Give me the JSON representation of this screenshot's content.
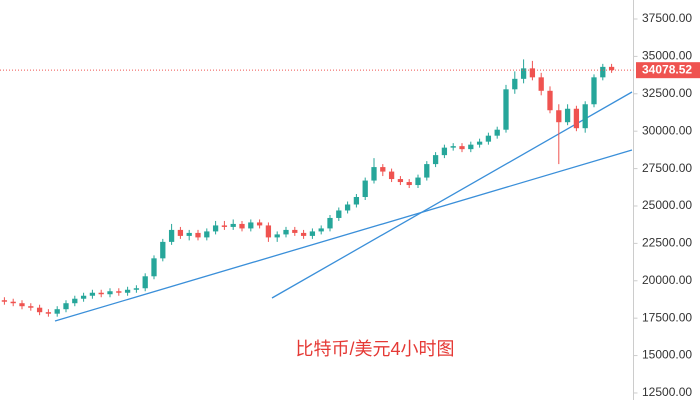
{
  "chart_data": {
    "type": "candlestick",
    "title": "比特币/美元4小时图",
    "colors": {
      "up": "#26a69a",
      "down": "#ef5350"
    },
    "open": [
      18700,
      18600,
      18500,
      18300,
      18200,
      17900,
      17800,
      18100,
      18500,
      18800,
      19000,
      19200,
      19100,
      19300,
      19200,
      19400,
      19500,
      20300,
      21500,
      22600,
      23400,
      23000,
      23200,
      22900,
      23300,
      23700,
      23600,
      23800,
      23500,
      23900,
      23700,
      22900,
      23100,
      23400,
      23200,
      23000,
      23300,
      23500,
      24200,
      24700,
      25100,
      25600,
      26700,
      27600,
      27300,
      26800,
      26600,
      26400,
      26900,
      27800,
      28400,
      28900,
      29000,
      28800,
      29100,
      29300,
      29700,
      30100,
      32800,
      33500,
      34200,
      33600,
      32700,
      31400,
      30600,
      31500,
      30200,
      31800,
      33600,
      34300
    ],
    "high": [
      18900,
      18800,
      18700,
      18500,
      18400,
      18100,
      18300,
      18700,
      19000,
      19200,
      19400,
      19400,
      19500,
      19500,
      19600,
      19700,
      20500,
      21700,
      22800,
      23800,
      23600,
      23400,
      23400,
      23500,
      24000,
      24000,
      24100,
      24000,
      24100,
      24100,
      23900,
      23300,
      23600,
      23600,
      23400,
      23500,
      23700,
      24400,
      24900,
      25300,
      25800,
      26900,
      28200,
      27800,
      27500,
      27000,
      26800,
      27100,
      28000,
      28600,
      29100,
      29200,
      29200,
      29300,
      29500,
      29900,
      30300,
      33100,
      34000,
      34800,
      34700,
      33900,
      33000,
      31800,
      31800,
      31700,
      32000,
      33800,
      34500,
      34500
    ],
    "low": [
      18400,
      18300,
      18100,
      18000,
      17700,
      17600,
      17600,
      17900,
      18300,
      18600,
      18800,
      18900,
      18900,
      19000,
      19000,
      19200,
      19300,
      20100,
      21300,
      22400,
      22800,
      22700,
      22700,
      22700,
      23100,
      23400,
      23400,
      23300,
      23300,
      23500,
      22600,
      22600,
      22900,
      23000,
      22800,
      22800,
      23100,
      23300,
      24000,
      24500,
      24900,
      25400,
      26500,
      27000,
      26600,
      26400,
      26200,
      26200,
      26700,
      27600,
      28200,
      28700,
      28600,
      28600,
      28900,
      29100,
      29500,
      29900,
      32500,
      33200,
      33400,
      32400,
      31200,
      27800,
      30400,
      30000,
      29900,
      31600,
      33400,
      33900
    ],
    "close": [
      18600,
      18500,
      18300,
      18200,
      17900,
      17800,
      18100,
      18500,
      18800,
      19000,
      19200,
      19100,
      19300,
      19200,
      19400,
      19500,
      20300,
      21500,
      22600,
      23400,
      23000,
      23200,
      22900,
      23300,
      23700,
      23600,
      23800,
      23500,
      23900,
      23700,
      22900,
      23100,
      23400,
      23200,
      23000,
      23300,
      23500,
      24200,
      24700,
      25100,
      25600,
      26700,
      27600,
      27300,
      26800,
      26600,
      26400,
      26900,
      27800,
      28400,
      28900,
      29000,
      28800,
      29100,
      29300,
      29700,
      30100,
      32800,
      33500,
      34200,
      33600,
      32700,
      31400,
      30600,
      31500,
      30200,
      31800,
      33600,
      34300,
      34078.52
    ],
    "last_price": 34078.52,
    "ylim": [
      12030,
      38770
    ],
    "yticks": [
      {
        "value": 12500,
        "label": "12500.00"
      },
      {
        "value": 15000,
        "label": "15000.00"
      },
      {
        "value": 17500,
        "label": "17500.00"
      },
      {
        "value": 20000,
        "label": "20000.00"
      },
      {
        "value": 22500,
        "label": "22500.00"
      },
      {
        "value": 25000,
        "label": "25000.00"
      },
      {
        "value": 27500,
        "label": "27500.00"
      },
      {
        "value": 30000,
        "label": "30000.00"
      },
      {
        "value": 32500,
        "label": "32500.00"
      },
      {
        "value": 35000,
        "label": "35000.00"
      },
      {
        "value": 37500,
        "label": "37500.00"
      }
    ]
  }
}
